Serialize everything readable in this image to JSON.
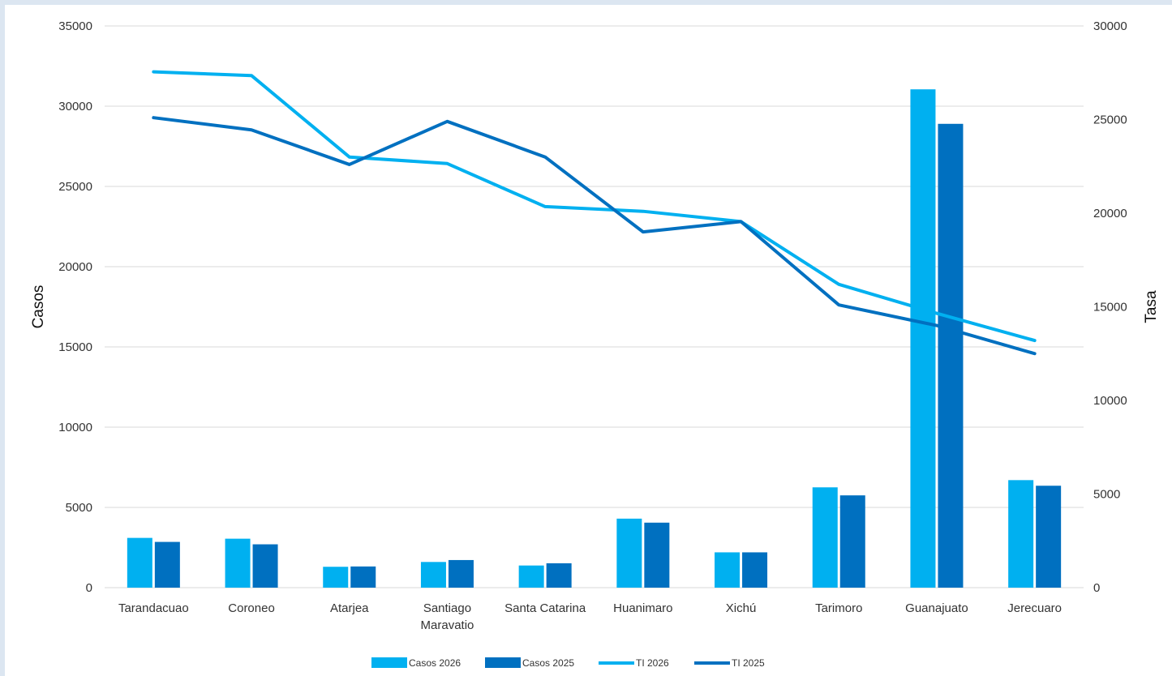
{
  "chart_data": {
    "type": "bar+line",
    "categories": [
      [
        "Tarandacuao"
      ],
      [
        "Coroneo"
      ],
      [
        "Atarjea"
      ],
      [
        "Santiago",
        "Maravatio"
      ],
      [
        "Santa Catarina"
      ],
      [
        "Huanimaro"
      ],
      [
        "Xichú"
      ],
      [
        "Tarimoro"
      ],
      [
        "Guanajuato"
      ],
      [
        "Jerecuaro"
      ]
    ],
    "y_left": {
      "label": "Casos",
      "range": [
        0,
        35000
      ],
      "ticks": [
        "0",
        "5000",
        "10000",
        "15000",
        "20000",
        "25000",
        "30000",
        "35000"
      ]
    },
    "y_right": {
      "label": "Tasa",
      "range": [
        0,
        30000
      ],
      "ticks": [
        "0",
        "5000",
        "10000",
        "15000",
        "20000",
        "25000",
        "30000"
      ]
    },
    "grid": true,
    "legend_position": "bottom",
    "series": [
      {
        "name": "Casos 2026",
        "kind": "bar",
        "axis": "left",
        "color": "#00b0f0",
        "values": [
          3100,
          3050,
          1300,
          1600,
          1380,
          4300,
          2200,
          6250,
          31050,
          6700
        ]
      },
      {
        "name": "Casos 2025",
        "kind": "bar",
        "axis": "left",
        "color": "#0070c0",
        "values": [
          2850,
          2700,
          1320,
          1720,
          1520,
          4050,
          2200,
          5750,
          28900,
          6350
        ]
      },
      {
        "name": "TI 2026",
        "kind": "line",
        "axis": "right",
        "color": "#00b0f0",
        "values": [
          27550,
          27350,
          23000,
          22650,
          20350,
          20100,
          19550,
          16200,
          14650,
          13200
        ]
      },
      {
        "name": "TI 2025",
        "kind": "line",
        "axis": "right",
        "color": "#0070c0",
        "values": [
          25100,
          24450,
          22600,
          24900,
          23000,
          19000,
          19550,
          15100,
          14000,
          12500
        ]
      }
    ]
  }
}
